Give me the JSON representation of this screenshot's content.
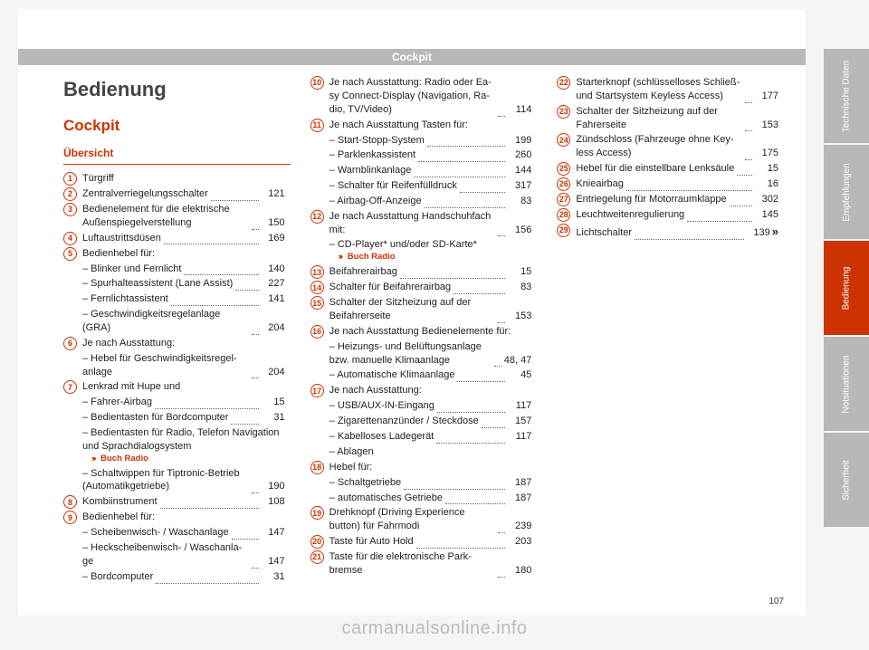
{
  "headerBand": "Cockpit",
  "h1": "Bedienung",
  "h2": "Cockpit",
  "h3": "Übersicht",
  "pageNumber": "107",
  "watermark": "carmanualsonline.info",
  "tabs": [
    {
      "label": "Technische Daten",
      "active": false
    },
    {
      "label": "Empfehlungen",
      "active": false
    },
    {
      "label": "Bedienung",
      "active": true
    },
    {
      "label": "Notsituationen",
      "active": false
    },
    {
      "label": "Sicherheit",
      "active": false
    }
  ],
  "items": [
    {
      "n": "1",
      "text": "Türgriff",
      "page": ""
    },
    {
      "n": "2",
      "text": "Zentralverriegelungsschalter",
      "page": "121"
    },
    {
      "n": "3",
      "text": "Bedienelement für die elektrische Außenspiegelverstellung",
      "page": "150"
    },
    {
      "n": "4",
      "text": "Luftaustrittsdüsen",
      "page": "169"
    },
    {
      "n": "5",
      "text": "Bedienhebel für:",
      "page": ""
    },
    {
      "sub": true,
      "text": "Blinker und Fernlicht",
      "page": "140"
    },
    {
      "sub": true,
      "text": "Spurhalteassistent (Lane Assist)",
      "page": "227"
    },
    {
      "sub": true,
      "text": "Fernlichtassistent",
      "page": "141"
    },
    {
      "sub": true,
      "text": "Geschwindigkeitsregelanlage (GRA)",
      "page": "204"
    },
    {
      "n": "6",
      "text": "Je nach Ausstattung:",
      "page": ""
    },
    {
      "sub": true,
      "text": "Hebel für Geschwindigkeitsregel­anlage",
      "page": "204"
    },
    {
      "n": "7",
      "text": "Lenkrad mit Hupe und",
      "page": ""
    },
    {
      "sub": true,
      "text": "Fahrer-Airbag",
      "page": "15"
    },
    {
      "sub": true,
      "text": "Bedientasten für Bordcompu­ter",
      "page": "31"
    },
    {
      "sub": true,
      "text": "Bedientasten für Radio, Telefon Navigation und Sprachdialogsys­tem",
      "link": "Buch Radio",
      "page": ""
    },
    {
      "sub": true,
      "text": "Schaltwippen für Tiptronic-Be­trieb (Automatikgetriebe)",
      "page": "190"
    },
    {
      "n": "8",
      "text": "Kombiinstrument",
      "page": "108"
    },
    {
      "n": "9",
      "text": "Bedienhebel für:",
      "page": ""
    },
    {
      "sub": true,
      "text": "Scheibenwisch- / Waschanlage",
      "page": "147"
    },
    {
      "sub": true,
      "text": "Heckscheibenwisch- / Waschanla­ge",
      "page": "147"
    },
    {
      "sub": true,
      "text": "Bordcomputer",
      "page": "31"
    },
    {
      "n": "10",
      "text": "Je nach Ausstattung: Radio oder Ea­sy Connect-Display (Navigation, Ra­dio, TV/Video)",
      "page": "114"
    },
    {
      "n": "11",
      "text": "Je nach Ausstattung Tasten für:",
      "page": ""
    },
    {
      "sub": true,
      "text": "Start-Stopp-System",
      "page": "199"
    },
    {
      "sub": true,
      "text": "Parklenkassistent",
      "page": "260"
    },
    {
      "sub": true,
      "text": "Warnblinkanlage",
      "page": "144"
    },
    {
      "sub": true,
      "text": "Schalter für Reifenfülldruck",
      "page": "317"
    },
    {
      "sub": true,
      "text": "Airbag-Off-Anzeige",
      "page": "83"
    },
    {
      "n": "12",
      "text": "Je nach Ausstattung Handschuh­fach mit:",
      "page": "156"
    },
    {
      "sub": true,
      "text": "CD-Player* und/oder SD-Karte*",
      "link": "Buch Radio",
      "page": ""
    },
    {
      "n": "13",
      "text": "Beifahrerairbag",
      "page": "15"
    },
    {
      "n": "14",
      "text": "Schalter für Beifahrerairbag",
      "page": "83"
    },
    {
      "n": "15",
      "text": "Schalter der Sitzheizung auf der Beifahrerseite",
      "page": "153"
    },
    {
      "n": "16",
      "text": "Je nach Ausstattung Bedienelemen­te für:",
      "page": ""
    },
    {
      "sub": true,
      "text": "Heizungs- und Belüftungsanlage bzw. manuelle Klimaanlage",
      "page": "48, 47"
    },
    {
      "sub": true,
      "text": "Automatische Klimaanlage",
      "page": "45"
    },
    {
      "n": "17",
      "text": "Je nach Ausstattung:",
      "page": ""
    },
    {
      "sub": true,
      "text": "USB/AUX-IN-Eingang",
      "page": "117"
    },
    {
      "sub": true,
      "text": "Zigarettenanzünder / Steckdo­se",
      "page": "157"
    },
    {
      "sub": true,
      "text": "Kabelloses Ladegerät",
      "page": "117"
    },
    {
      "sub": true,
      "text": "Ablagen",
      "page": ""
    },
    {
      "n": "18",
      "text": "Hebel für:",
      "page": ""
    },
    {
      "sub": true,
      "text": "Schaltgetriebe",
      "page": "187"
    },
    {
      "sub": true,
      "text": "automatisches Getriebe",
      "page": "187"
    },
    {
      "n": "19",
      "text": "Drehknopf (Driving Experience button) für Fahrmodi",
      "page": "239"
    },
    {
      "n": "20",
      "text": "Taste für Auto Hold",
      "page": "203"
    },
    {
      "n": "21",
      "text": "Taste für die elektronische Park­bremse",
      "page": "180"
    },
    {
      "n": "22",
      "text": "Starterknopf (schlüsselloses Schließ- und Startsystem Keyless Access)",
      "page": "177"
    },
    {
      "n": "23",
      "text": "Schalter der Sitzheizung auf der Fahrerseite",
      "page": "153"
    },
    {
      "n": "24",
      "text": "Zündschloss (Fahrzeuge ohne Key­less Access)",
      "page": "175"
    },
    {
      "n": "25",
      "text": "Hebel für die einstellbare Lenksäu­le",
      "page": "15"
    },
    {
      "n": "26",
      "text": "Knieairbag",
      "page": "16"
    },
    {
      "n": "27",
      "text": "Entriegelung für Motorraumklap­pe",
      "page": "302"
    },
    {
      "n": "28",
      "text": "Leuchtweitenregulierung",
      "page": "145"
    },
    {
      "n": "29",
      "text": "Lichtschalter",
      "page": "139",
      "endmark": true
    }
  ]
}
